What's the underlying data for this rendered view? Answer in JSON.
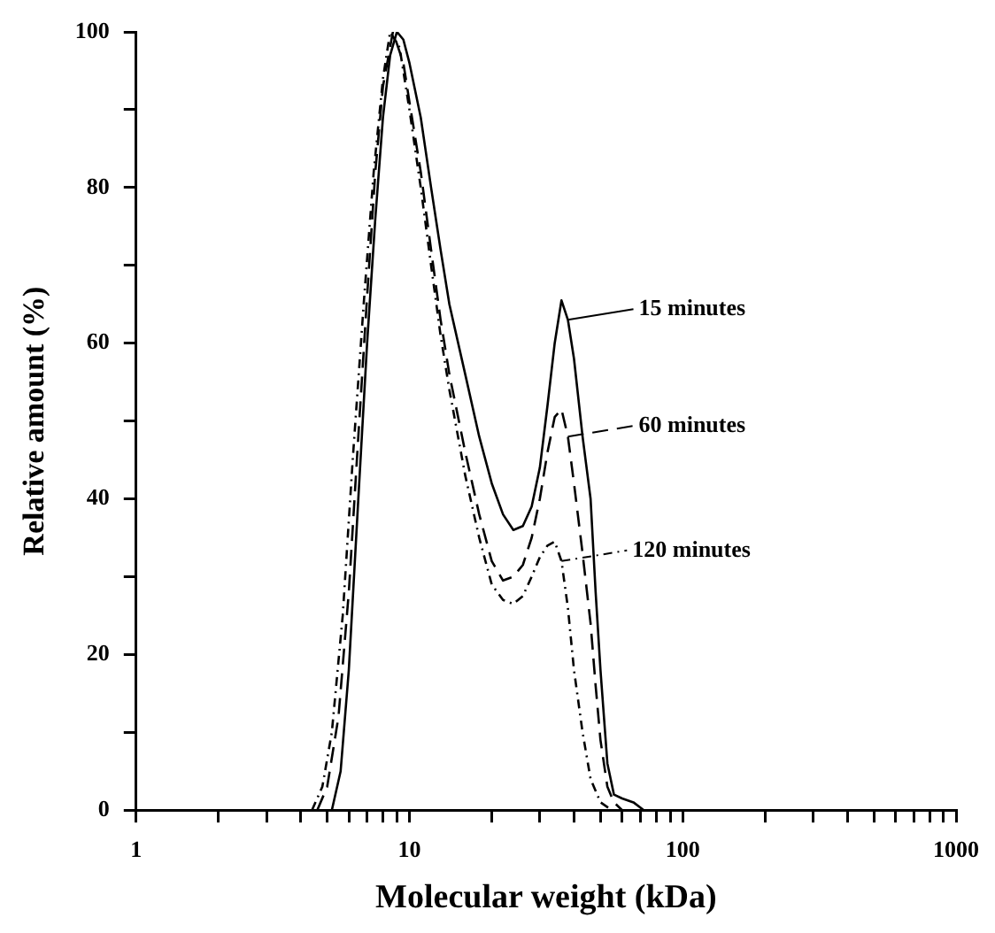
{
  "chart_data": {
    "type": "line",
    "xlabel": "Molecular weight (kDa)",
    "ylabel": "Relative amount (%)",
    "log": "x",
    "grid": false,
    "legend": "right",
    "marker": "none",
    "xlim": [
      1,
      1000
    ],
    "ylim": [
      0,
      100
    ],
    "xticks": [
      1,
      {
        "value": 2,
        "label": null
      },
      {
        "value": 3,
        "label": null
      },
      {
        "value": 4,
        "label": null
      },
      {
        "value": 5,
        "label": null
      },
      {
        "value": 6,
        "label": null
      },
      {
        "value": 7,
        "label": null
      },
      {
        "value": 8,
        "label": null
      },
      {
        "value": 9,
        "label": null
      },
      10,
      {
        "value": 20,
        "label": null
      },
      {
        "value": 30,
        "label": null
      },
      {
        "value": 40,
        "label": null
      },
      {
        "value": 50,
        "label": null
      },
      {
        "value": 60,
        "label": null
      },
      {
        "value": 70,
        "label": null
      },
      {
        "value": 80,
        "label": null
      },
      {
        "value": 90,
        "label": null
      },
      100,
      {
        "value": 200,
        "label": null
      },
      {
        "value": 300,
        "label": null
      },
      {
        "value": 400,
        "label": null
      },
      {
        "value": 500,
        "label": null
      },
      {
        "value": 600,
        "label": null
      },
      {
        "value": 700,
        "label": null
      },
      {
        "value": 800,
        "label": null
      },
      {
        "value": 900,
        "label": null
      },
      1000
    ],
    "yticks": [
      0,
      {
        "value": 10,
        "label": null
      },
      20,
      {
        "value": 30,
        "label": null
      },
      40,
      {
        "value": 50,
        "label": null
      },
      60,
      {
        "value": 70,
        "label": null
      },
      80,
      {
        "value": 90,
        "label": null
      },
      100
    ],
    "series": [
      {
        "name": "15 minutes",
        "color": "#000000",
        "line_style": "solid",
        "x": [
          5.2,
          5.6,
          6,
          6.5,
          7,
          7.5,
          8,
          8.5,
          9,
          9.5,
          10,
          11,
          12,
          13,
          14,
          16,
          18,
          20,
          22,
          24,
          26,
          28,
          30,
          32,
          34,
          36,
          38,
          40,
          43,
          46,
          48,
          50,
          53,
          56,
          60,
          66,
          72
        ],
        "values": [
          0,
          5,
          18,
          40,
          60,
          76,
          89,
          97,
          100,
          99,
          96,
          89,
          80,
          72,
          65,
          56,
          48,
          42,
          38,
          36,
          36.5,
          39,
          44,
          52,
          60,
          65.5,
          63,
          58,
          48,
          40,
          28,
          18,
          6,
          2,
          1.5,
          1,
          0
        ]
      },
      {
        "name": "60 minutes",
        "color": "#000000",
        "line_style": "dashed",
        "x": [
          4.6,
          5,
          5.5,
          6,
          6.5,
          7,
          7.5,
          8,
          8.7,
          9.5,
          10,
          11,
          12,
          13,
          14,
          16,
          18,
          20,
          22,
          24,
          26,
          28,
          30,
          32,
          34,
          36,
          38,
          40,
          43,
          46,
          48,
          50,
          53,
          56,
          60
        ],
        "values": [
          0,
          3,
          12,
          28,
          48,
          66,
          82,
          93,
          100,
          96,
          91,
          82,
          72,
          63,
          56,
          46,
          38,
          32,
          29.5,
          30,
          31.5,
          35,
          40,
          46,
          50.5,
          51.5,
          48,
          42,
          33,
          24,
          16,
          9,
          3,
          1,
          0
        ]
      },
      {
        "name": "120 minutes",
        "color": "#000000",
        "line_style": "dotted",
        "x": [
          4.4,
          4.8,
          5.2,
          5.7,
          6.2,
          6.8,
          7.4,
          8,
          8.5,
          9.2,
          10,
          11,
          12,
          13,
          14,
          16,
          18,
          20,
          22,
          24,
          26,
          28,
          30,
          32,
          34,
          36,
          38,
          40,
          43,
          46,
          50,
          55
        ],
        "values": [
          0,
          3,
          10,
          25,
          45,
          65,
          82,
          94,
          100,
          98,
          90,
          80,
          70,
          61,
          54,
          43,
          35,
          29,
          27,
          26.5,
          27.5,
          30,
          32.5,
          34,
          34.5,
          32,
          26,
          18,
          10,
          4,
          1,
          0
        ]
      }
    ]
  }
}
